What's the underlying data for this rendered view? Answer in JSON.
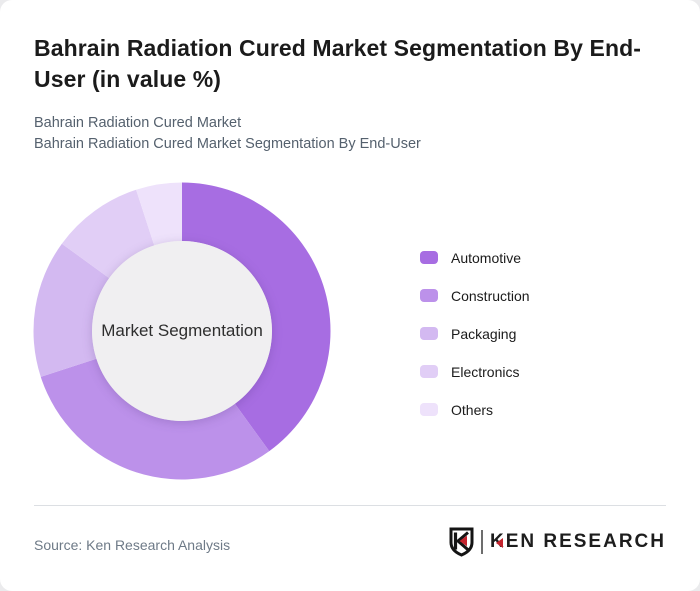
{
  "page": {
    "title": "Bahrain Radiation Cured Market Segmentation By End-User (in value %)",
    "subtitle_line1": "Bahrain Radiation Cured Market",
    "subtitle_line2": "Bahrain Radiation Cured Market Segmentation By End-User",
    "source": "Source: Ken Research Analysis",
    "brand": "KEN RESEARCH"
  },
  "chart_data": {
    "type": "pie",
    "variant": "donut",
    "title": "Bahrain Radiation Cured Market Segmentation By End-User (in value %)",
    "center_label": "Market Segmentation",
    "categories": [
      "Automotive",
      "Construction",
      "Packaging",
      "Electronics",
      "Others"
    ],
    "values": [
      40,
      30,
      15,
      10,
      5
    ],
    "unit": "%",
    "colors": [
      "#a76de2",
      "#bc91ea",
      "#d3b9f1",
      "#e1cef6",
      "#eee2fb"
    ],
    "hole_color": "#f0eff1",
    "start_angle_deg": 0,
    "direction": "clockwise",
    "legend_position": "right",
    "data_labels": false
  },
  "logo": {
    "red": "#c4242e",
    "dark": "#141414"
  }
}
